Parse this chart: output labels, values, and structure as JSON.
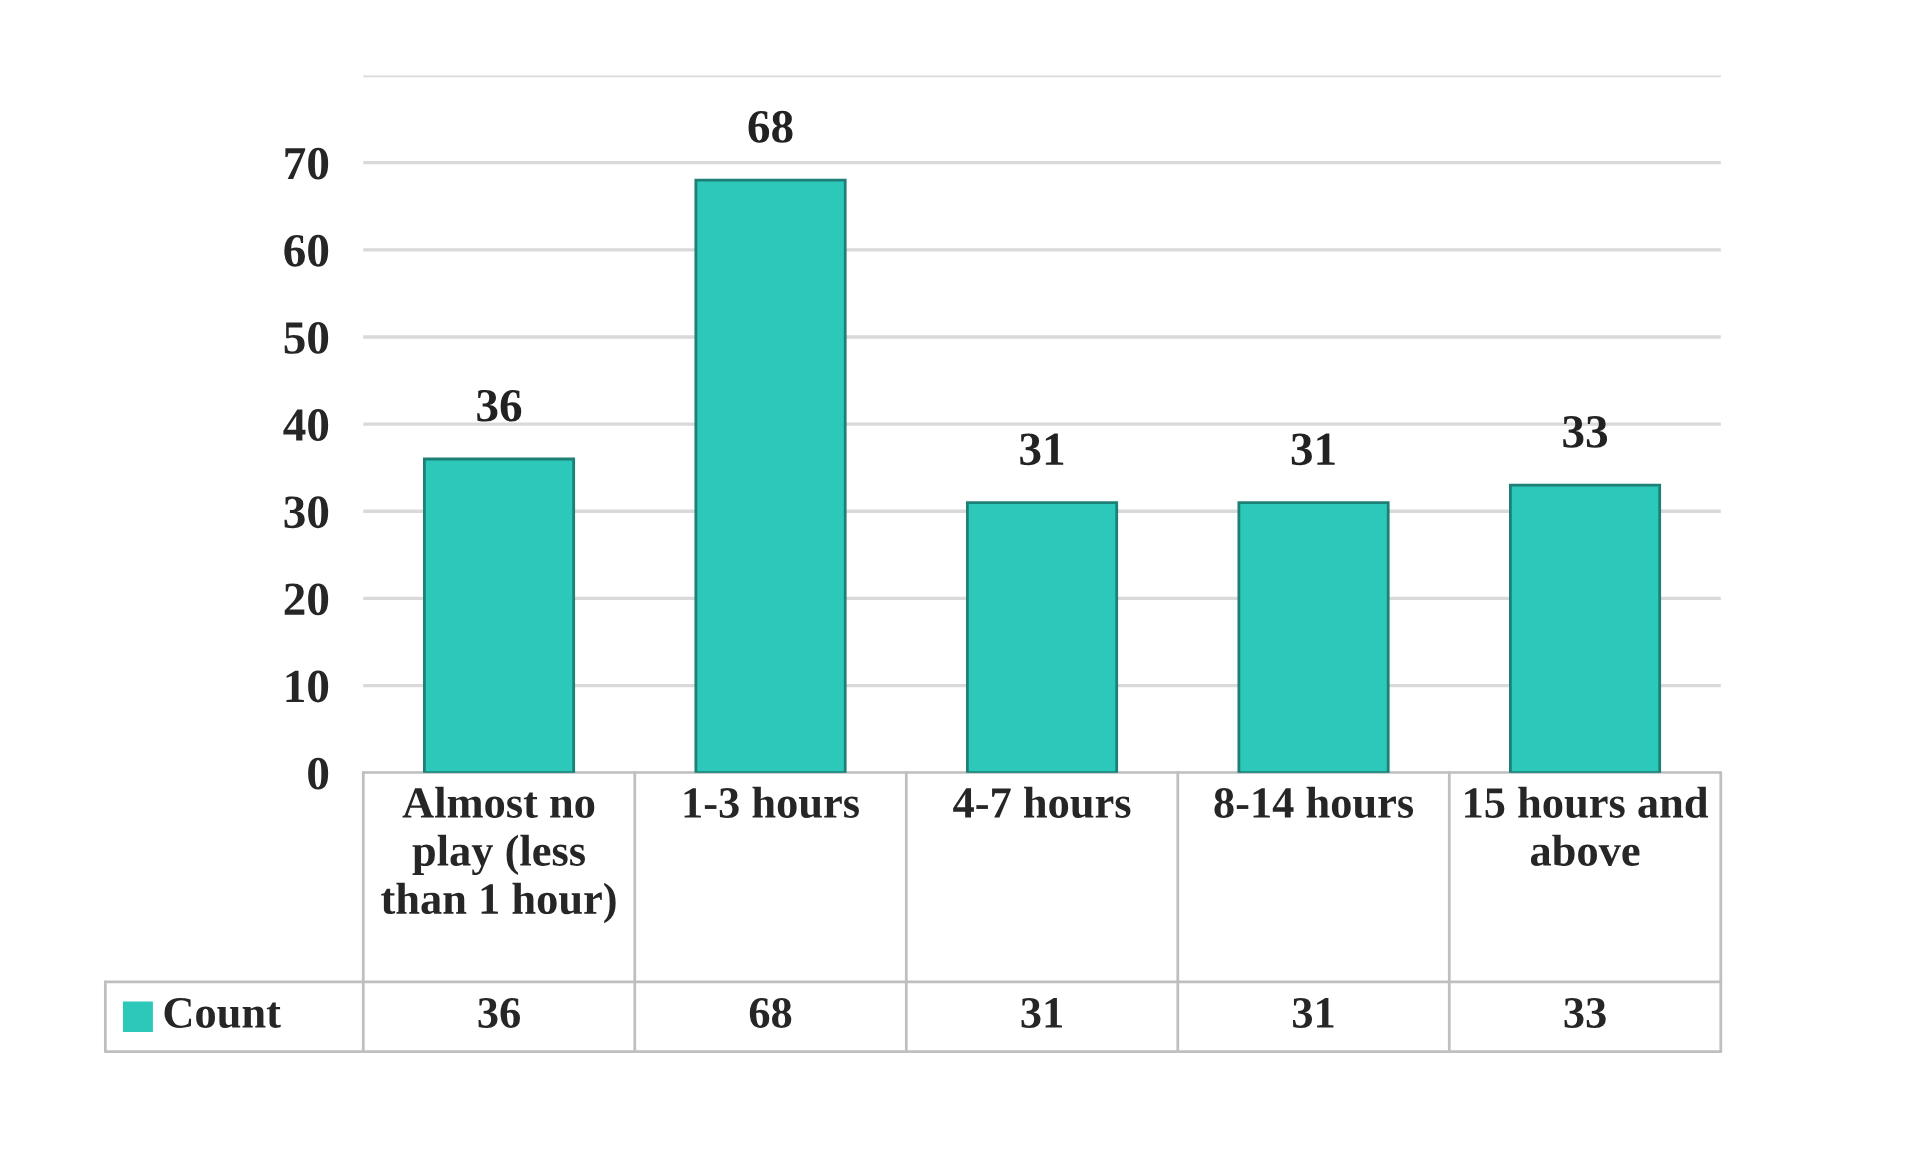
{
  "chart_data": {
    "type": "bar",
    "categories": [
      "Almost no play (less than 1 hour)",
      "1-3 hours",
      "4-7 hours",
      "8-14 hours",
      "15 hours and above"
    ],
    "series": [
      {
        "name": "Count",
        "color": "#2cc8b9",
        "values": [
          36,
          68,
          31,
          31,
          33
        ]
      }
    ],
    "annotations": [
      {
        "text": "36",
        "x": "Almost no play (less than 1 hour)",
        "y": 36
      },
      {
        "text": "68",
        "x": "1-3 hours",
        "y": 68
      },
      {
        "text": "31",
        "x": "4-7 hours",
        "y": 31
      },
      {
        "text": "31",
        "x": "8-14 hours",
        "y": 31
      },
      {
        "text": "33",
        "x": "15 hours and above",
        "y": 33
      }
    ],
    "ylim": [
      0,
      80
    ],
    "yticks": [
      0,
      10,
      20,
      30,
      40,
      50,
      60,
      70,
      {
        "value": 80,
        "label": null
      }
    ],
    "grid": "y",
    "data_labels": true,
    "legend": "bottom"
  }
}
